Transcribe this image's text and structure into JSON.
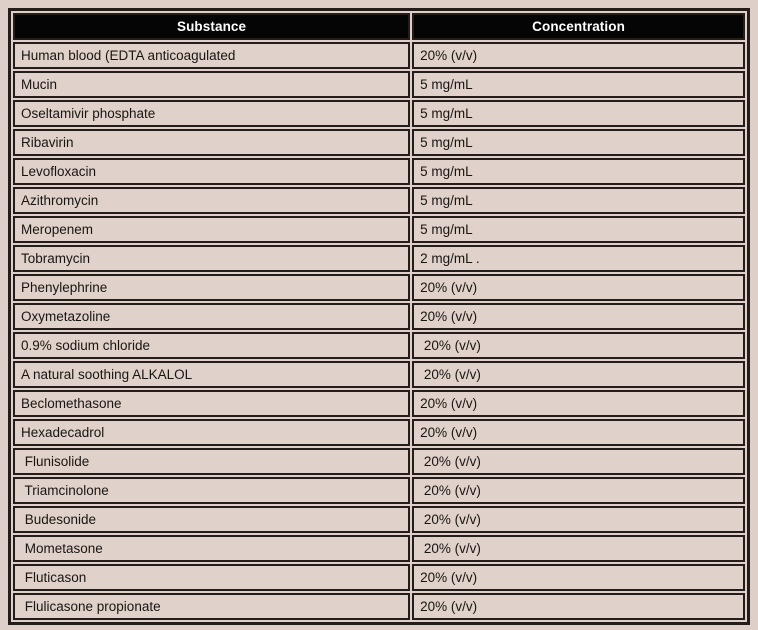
{
  "table": {
    "columns": [
      "Substance",
      "Concentration"
    ],
    "rows": [
      {
        "substance": "Human blood (EDTA anticoagulated",
        "concentration": "20% (v/v)"
      },
      {
        "substance": "Mucin",
        "concentration": "5 mg/mL"
      },
      {
        "substance": "Oseltamivir phosphate",
        "concentration": "5 mg/mL"
      },
      {
        "substance": "Ribavirin",
        "concentration": "5 mg/mL"
      },
      {
        "substance": "Levofloxacin",
        "concentration": "5 mg/mL"
      },
      {
        "substance": "Azithromycin",
        "concentration": "5 mg/mL"
      },
      {
        "substance": "Meropenem",
        "concentration": "5 mg/mL"
      },
      {
        "substance": "Tobramycin",
        "concentration": "2 mg/mL ."
      },
      {
        "substance": "Phenylephrine",
        "concentration": "20% (v/v)"
      },
      {
        "substance": "Oxymetazoline",
        "concentration": "20% (v/v)"
      },
      {
        "substance": "0.9% sodium chloride",
        "concentration": " 20% (v/v)"
      },
      {
        "substance": "A natural soothing ALKALOL",
        "concentration": " 20% (v/v)"
      },
      {
        "substance": "Beclomethasone",
        "concentration": "20% (v/v)"
      },
      {
        "substance": "Hexadecadrol",
        "concentration": "20% (v/v)"
      },
      {
        "substance": " Flunisolide",
        "concentration": " 20% (v/v)"
      },
      {
        "substance": " Triamcinolone",
        "concentration": " 20% (v/v)"
      },
      {
        "substance": " Budesonide",
        "concentration": " 20% (v/v)"
      },
      {
        "substance": " Mometasone",
        "concentration": " 20% (v/v)"
      },
      {
        "substance": " Fluticason",
        "concentration": "20% (v/v)"
      },
      {
        "substance": " Flulicasone propionate",
        "concentration": "20% (v/v)"
      }
    ]
  },
  "colors": {
    "page_background": "#ded0c8",
    "cell_background": "#e0d2ca",
    "border": "#241d19",
    "header_background": "#050505",
    "header_text": "#ffffff",
    "cell_text": "#181512"
  }
}
